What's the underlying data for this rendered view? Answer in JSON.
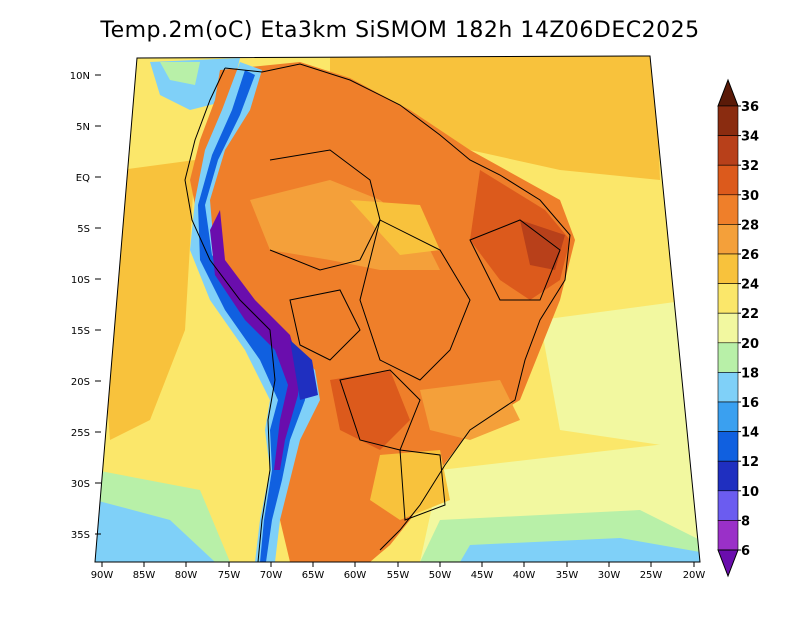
{
  "title": "Temp.2m(oC) Eta3km SiSMOM 182h 14Z06DEC2025",
  "lat_labels": [
    "10N",
    "5N",
    "EQ",
    "5S",
    "10S",
    "15S",
    "20S",
    "25S",
    "30S",
    "35S"
  ],
  "lon_labels": [
    "90W",
    "85W",
    "80W",
    "75W",
    "70W",
    "65W",
    "60W",
    "55W",
    "50W",
    "45W",
    "40W",
    "35W",
    "30W",
    "25W",
    "20W"
  ],
  "colorbar": {
    "labels": [
      "6",
      "8",
      "10",
      "12",
      "14",
      "16",
      "18",
      "20",
      "22",
      "24",
      "26",
      "28",
      "30",
      "32",
      "34",
      "36"
    ],
    "colors": [
      "#6a0dad",
      "#9a30c8",
      "#6b5cf0",
      "#1f2fc0",
      "#1060e0",
      "#3aa0f0",
      "#7fd0f8",
      "#b8f0a8",
      "#f2f8a0",
      "#fbe76a",
      "#f8c23c",
      "#f4a03a",
      "#ef7f2a",
      "#dc5a1c",
      "#b8401a",
      "#8a2c10",
      "#5a1a08"
    ],
    "units": "oC"
  }
}
